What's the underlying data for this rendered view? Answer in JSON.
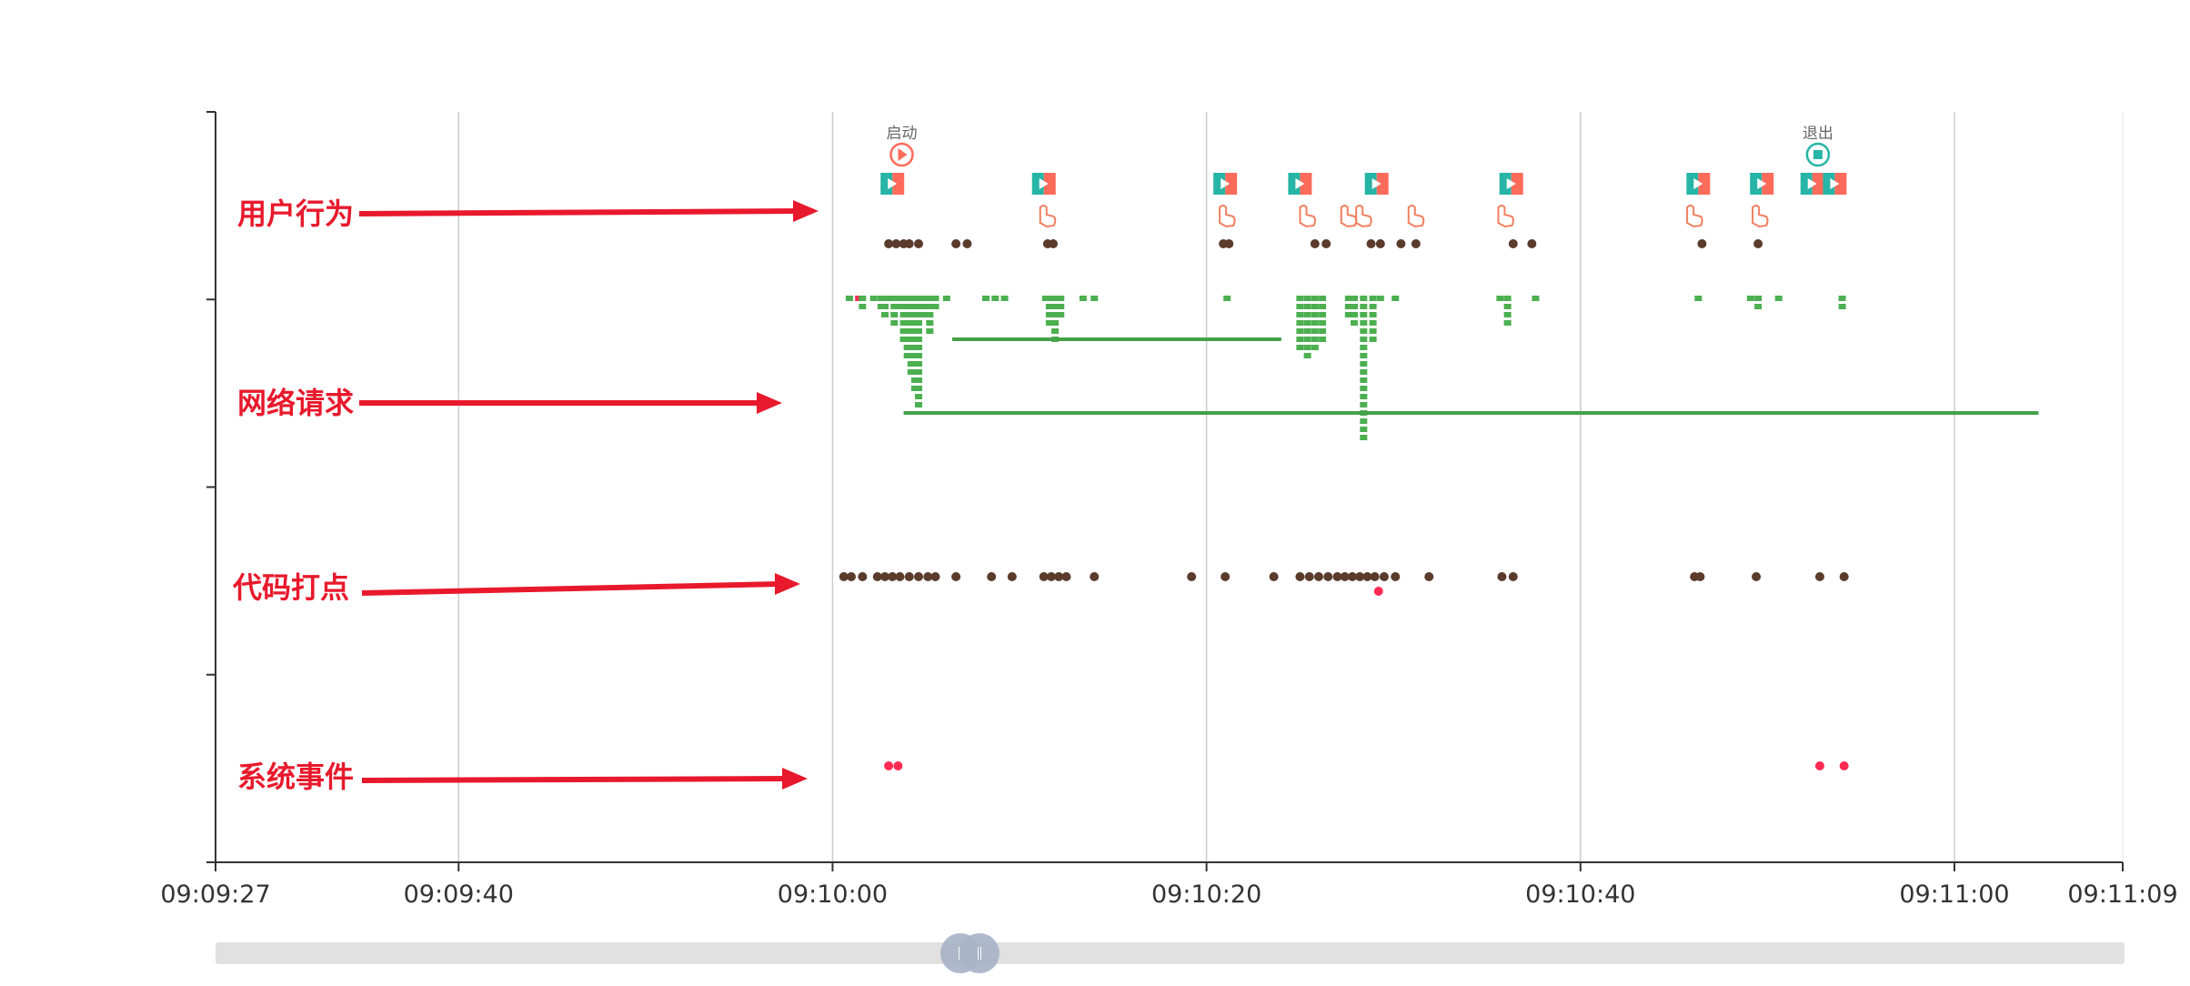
{
  "chart_data": {
    "type": "scatter",
    "title": "",
    "lanes": [
      {
        "key": "user",
        "label": "用户行为"
      },
      {
        "key": "network",
        "label": "网络请求"
      },
      {
        "key": "code",
        "label": "代码打点"
      },
      {
        "key": "system",
        "label": "系统事件"
      }
    ],
    "x_ticks": [
      "09:09:27",
      "09:09:40",
      "09:10:00",
      "09:10:20",
      "09:10:40",
      "09:11:00",
      "09:11:09"
    ],
    "x_range": [
      "09:09:27",
      "09:11:09"
    ],
    "grid": true,
    "colors": {
      "axis": "#333333",
      "grid": "#cccccc",
      "dot_dark": "#5a3b2c",
      "dot_red": "#ff2a52",
      "network": "#4caf50",
      "network_line": "#45a049",
      "page_icon_left": "#26b5a6",
      "page_icon_right": "#ff6b5b",
      "touch": "#f08060",
      "arrow": "#e8192c"
    },
    "markers": [
      {
        "time": "09:10:03.7",
        "label": "启动",
        "icon": "play-circle-icon",
        "color": "#ff6b5b"
      },
      {
        "time": "09:10:52.7",
        "label": "退出",
        "icon": "stop-circle-icon",
        "color": "#26b5a6"
      }
    ],
    "page_events": [
      "09:10:03.2",
      "09:10:11.3",
      "09:10:21",
      "09:10:25.0",
      "09:10:29.1",
      "09:10:36.3",
      "09:10:46.3",
      "09:10:49.7",
      "09:10:52.4",
      "09:10:53.6"
    ],
    "touch_events": [
      "09:10:11.3",
      "09:10:20.9",
      "09:10:25.2",
      "09:10:27.4",
      "09:10:28.2",
      "09:10:31.0",
      "09:10:35.8",
      "09:10:45.9",
      "09:10:49.4"
    ],
    "user_dots": [
      "09:10:03.0",
      "09:10:03.4",
      "09:10:03.8",
      "09:10:04.1",
      "09:10:04.6",
      "09:10:06.6",
      "09:10:07.2",
      "09:10:11.5",
      "09:10:11.8",
      "09:10:20.9",
      "09:10:21.2",
      "09:10:25.8",
      "09:10:26.4",
      "09:10:28.8",
      "09:10:29.3",
      "09:10:30.4",
      "09:10:31.2",
      "09:10:36.4",
      "09:10:37.4",
      "09:10:46.5",
      "09:10:49.5"
    ],
    "network_requests": [
      {
        "start": "09:10:00.9",
        "depth": 0,
        "dur": 0
      },
      {
        "start": "09:10:01.4",
        "depth": 0,
        "dur": 0,
        "status": "error"
      },
      {
        "start": "09:10:01.6",
        "depth": 1,
        "dur": 0
      },
      {
        "start": "09:10:02.2",
        "depth": 0,
        "dur": 0
      },
      {
        "start": "09:10:02.6",
        "depth": 1,
        "dur": 0
      },
      {
        "start": "09:10:02.8",
        "depth": 2,
        "dur": 0
      },
      {
        "start": "09:10:03.1",
        "depth": 0,
        "dur": 0
      },
      {
        "start": "09:10:03.3",
        "depth": 3,
        "dur": 0
      },
      {
        "start": "09:10:03.6",
        "depth": 1,
        "dur": 0
      },
      {
        "start": "09:10:03.8",
        "depth": 5,
        "dur": 0
      },
      {
        "start": "09:10:04.0",
        "depth": 7,
        "dur": 0
      },
      {
        "start": "09:10:04.2",
        "depth": 9,
        "dur": 0
      },
      {
        "start": "09:10:04.4",
        "depth": 11,
        "dur": 0
      },
      {
        "start": "09:10:04.6",
        "depth": 13,
        "dur": 0
      },
      {
        "start": "09:10:04.9",
        "depth": 2,
        "dur": 0
      },
      {
        "start": "09:10:05.2",
        "depth": 4,
        "dur": 0
      },
      {
        "start": "09:10:05.5",
        "depth": 1,
        "dur": 0
      },
      {
        "start": "09:10:06.1",
        "depth": 0,
        "dur": 0
      },
      {
        "start": "09:10:08.2",
        "depth": 0,
        "dur": 0
      },
      {
        "start": "09:10:08.7",
        "depth": 0,
        "dur": 0
      },
      {
        "start": "09:10:09.2",
        "depth": 0,
        "dur": 0
      },
      {
        "start": "09:10:11.4",
        "depth": 0,
        "dur": 0
      },
      {
        "start": "09:10:11.6",
        "depth": 3,
        "dur": 0
      },
      {
        "start": "09:10:11.9",
        "depth": 5,
        "dur": 0
      },
      {
        "start": "09:10:12.2",
        "depth": 2,
        "dur": 0
      },
      {
        "start": "09:10:13.4",
        "depth": 0,
        "dur": 0
      },
      {
        "start": "09:10:14.0",
        "depth": 0,
        "dur": 0
      },
      {
        "start": "09:10:21.1",
        "depth": 0,
        "dur": 0
      },
      {
        "start": "09:10:25.0",
        "depth": 6,
        "dur": 0
      },
      {
        "start": "09:10:25.4",
        "depth": 7,
        "dur": 0
      },
      {
        "start": "09:10:25.8",
        "depth": 6,
        "dur": 0
      },
      {
        "start": "09:10:26.2",
        "depth": 5,
        "dur": 0
      },
      {
        "start": "09:10:27.6",
        "depth": 2,
        "dur": 0
      },
      {
        "start": "09:10:27.9",
        "depth": 3,
        "dur": 0
      },
      {
        "start": "09:10:28.4",
        "depth": 17,
        "dur": 0
      },
      {
        "start": "09:10:28.9",
        "depth": 5,
        "dur": 0
      },
      {
        "start": "09:10:29.3",
        "depth": 0,
        "dur": 0
      },
      {
        "start": "09:10:30.1",
        "depth": 0,
        "dur": 0
      },
      {
        "start": "09:10:35.7",
        "depth": 0,
        "dur": 0
      },
      {
        "start": "09:10:36.1",
        "depth": 3,
        "dur": 0
      },
      {
        "start": "09:10:37.6",
        "depth": 0,
        "dur": 0
      },
      {
        "start": "09:10:46.3",
        "depth": 0,
        "dur": 0
      },
      {
        "start": "09:10:49.1",
        "depth": 0,
        "dur": 0
      },
      {
        "start": "09:10:49.5",
        "depth": 1,
        "dur": 0
      },
      {
        "start": "09:10:50.6",
        "depth": 0,
        "dur": 0
      },
      {
        "start": "09:10:54.0",
        "depth": 1,
        "dur": 0
      },
      {
        "start": "09:10:06.4",
        "depth": 5,
        "dur": 17.6
      },
      {
        "start": "09:10:03.8",
        "depth": 14,
        "dur": 60.7
      }
    ],
    "code_dots": [
      "09:10:00.6",
      "09:10:01.0",
      "09:10:01.6",
      "09:10:02.4",
      "09:10:02.8",
      "09:10:03.2",
      "09:10:03.6",
      "09:10:04.1",
      "09:10:04.6",
      "09:10:05.1",
      "09:10:05.5",
      "09:10:06.6",
      "09:10:08.5",
      "09:10:09.6",
      "09:10:11.3",
      "09:10:11.7",
      "09:10:12.1",
      "09:10:12.5",
      "09:10:14.0",
      "09:10:19.2",
      "09:10:21.0",
      "09:10:23.6",
      "09:10:25.0",
      "09:10:25.5",
      "09:10:26.0",
      "09:10:26.5",
      "09:10:27.0",
      "09:10:27.4",
      "09:10:27.8",
      "09:10:28.2",
      "09:10:28.6",
      "09:10:29.0",
      "09:10:29.5",
      "09:10:30.1",
      "09:10:31.9",
      "09:10:35.8",
      "09:10:36.4",
      "09:10:46.1",
      "09:10:46.4",
      "09:10:49.4",
      "09:10:52.8",
      "09:10:54.1"
    ],
    "code_alert_dots": [
      "09:10:29.2"
    ],
    "system_dots": [
      "09:10:03.0",
      "09:10:03.5",
      "09:10:52.8",
      "09:10:54.1"
    ],
    "slider": {
      "start_percent": 39,
      "end_percent": 40
    }
  }
}
